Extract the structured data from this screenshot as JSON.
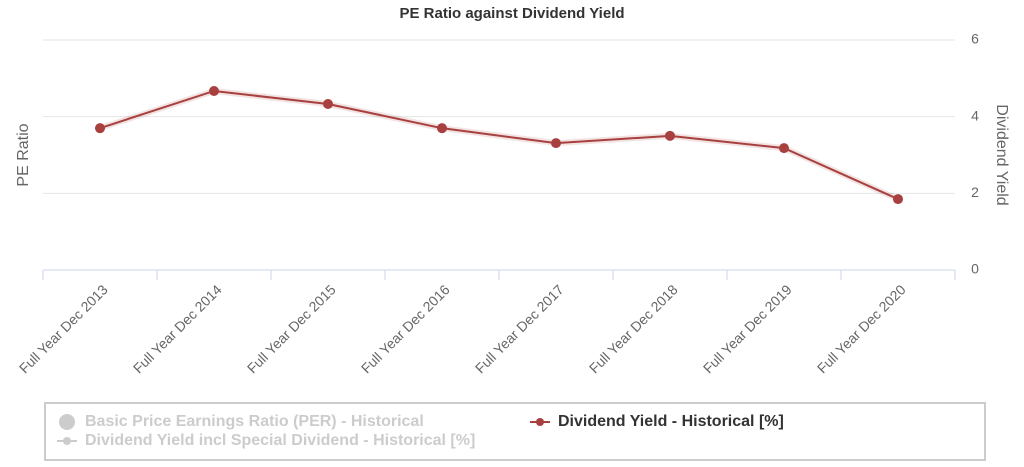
{
  "chart_data": {
    "type": "line",
    "title": "PE Ratio against Dividend Yield",
    "y_label": "PE Ratio",
    "y2_label": "Dividend Yield",
    "categories": [
      "Full Year Dec 2013",
      "Full Year Dec 2014",
      "Full Year Dec 2015",
      "Full Year Dec 2016",
      "Full Year Dec 2017",
      "Full Year Dec 2018",
      "Full Year Dec 2019",
      "Full Year Dec 2020"
    ],
    "y2lim": [
      0,
      6
    ],
    "y2ticks": [
      0,
      2,
      4,
      6
    ],
    "grid": true,
    "series": [
      {
        "name": "Basic Price Earnings Ratio (PER) - Historical",
        "color": "#cccccc",
        "visible": false,
        "marker": "circle",
        "values": [
          null,
          null,
          null,
          null,
          null,
          null,
          null,
          null
        ]
      },
      {
        "name": "Dividend Yield incl Special Dividend - Historical [%]",
        "color": "#cccccc",
        "visible": false,
        "marker": "line",
        "axis": "y2",
        "values": [
          null,
          null,
          null,
          null,
          null,
          null,
          null,
          null
        ]
      },
      {
        "name": "Dividend Yield - Historical [%]",
        "color": "#a8403f",
        "visible": true,
        "marker": "line",
        "axis": "y2",
        "values": [
          3.7,
          4.67,
          4.33,
          3.7,
          3.31,
          3.5,
          3.18,
          1.85
        ]
      }
    ]
  }
}
